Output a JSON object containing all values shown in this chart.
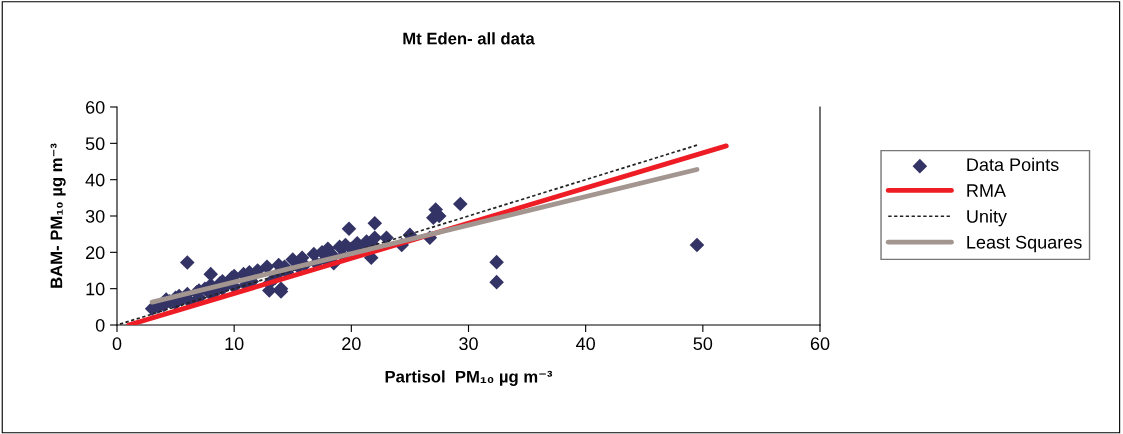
{
  "chart_data": {
    "type": "scatter",
    "title": "Mt Eden- all data",
    "xlabel": "Partisol  PM₁₀ µg m⁻³",
    "ylabel": "BAM- PM₁₀ µg m⁻³",
    "xlim": [
      0,
      60
    ],
    "ylim": [
      0,
      60
    ],
    "xticks": [
      0,
      10,
      20,
      30,
      40,
      50,
      60
    ],
    "yticks": [
      0,
      10,
      20,
      30,
      40,
      50,
      60
    ],
    "legend": "right",
    "series": [
      {
        "name": "Data Points",
        "color": "#333366",
        "marker": "diamond",
        "x": [
          3,
          3.5,
          4,
          4.2,
          4.5,
          5,
          5,
          5.3,
          5.5,
          6,
          6.2,
          6.8,
          7,
          7,
          7.5,
          8,
          8,
          8.5,
          8.8,
          9,
          9,
          9.8,
          10,
          10,
          10.8,
          11,
          11.3,
          11.5,
          12,
          12.8,
          13,
          13.5,
          13.8,
          14,
          14,
          14.3,
          14.5,
          15,
          15.5,
          15.8,
          16,
          16.8,
          17,
          17.5,
          17.8,
          18,
          18.3,
          18.5,
          19,
          19.3,
          19.5,
          20,
          20.5,
          21,
          21.3,
          21.7,
          22,
          6,
          8,
          13,
          14,
          19.8,
          22,
          21.7,
          23,
          24.3,
          25,
          26.7,
          27,
          27.2,
          27.5,
          29.3,
          32.4,
          32.4,
          49.5
        ],
        "values": [
          4.5,
          5,
          5.5,
          7,
          6.5,
          6,
          7.5,
          8,
          7,
          8.5,
          6.5,
          9,
          7.5,
          9.5,
          10,
          8.5,
          11,
          9.5,
          11.5,
          10,
          12,
          13,
          10.5,
          13.5,
          14,
          11,
          14.5,
          12,
          15,
          16,
          11.5,
          13,
          16.5,
          10,
          15,
          16,
          14.5,
          18,
          16,
          18.5,
          16.5,
          19.5,
          17,
          20,
          18,
          21,
          19.5,
          17,
          21.5,
          19,
          22,
          21,
          22.5,
          21,
          23,
          22.5,
          24,
          17.2,
          14,
          9.5,
          9.2,
          26.5,
          28,
          18.5,
          24,
          22,
          24.8,
          24,
          29.5,
          31.8,
          30,
          33.3,
          17.3,
          11.8,
          22
        ]
      },
      {
        "name": "RMA",
        "type": "line",
        "color": "#ee1c25",
        "line_style": "solid",
        "x": [
          1,
          52
        ],
        "values": [
          0,
          49.3
        ]
      },
      {
        "name": "Unity",
        "type": "line",
        "color": "#222222",
        "line_style": "dotted",
        "x": [
          0,
          49.5
        ],
        "values": [
          0,
          49.5
        ]
      },
      {
        "name": "Least Squares",
        "type": "line",
        "color": "#a39690",
        "line_style": "solid",
        "x": [
          3,
          49.5
        ],
        "values": [
          6.3,
          42.8
        ]
      }
    ]
  }
}
